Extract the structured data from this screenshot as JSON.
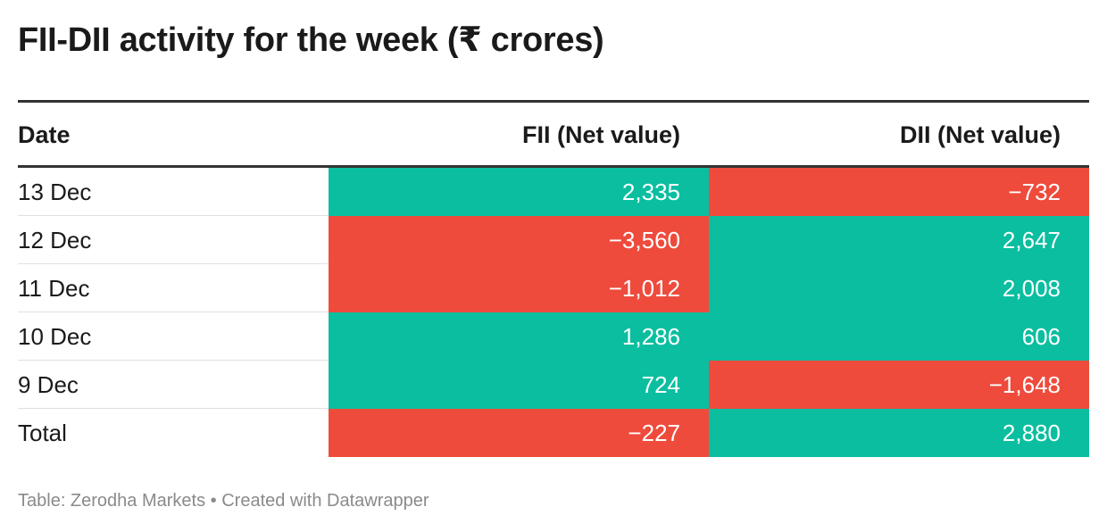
{
  "title": "FII-DII activity for the week (₹ crores)",
  "colors": {
    "positive": "#0bbea0",
    "negative": "#ee4b3c",
    "rule": "#333333"
  },
  "chart_data": {
    "type": "table",
    "title": "FII-DII activity for the week (₹ crores)",
    "columns": [
      "Date",
      "FII (Net value)",
      "DII (Net value)"
    ],
    "rows": [
      {
        "date": "13 Dec",
        "fii": 2335,
        "fii_label": "2,335",
        "dii": -732,
        "dii_label": "−732"
      },
      {
        "date": "12 Dec",
        "fii": -3560,
        "fii_label": "−3,560",
        "dii": 2647,
        "dii_label": "2,647"
      },
      {
        "date": "11 Dec",
        "fii": -1012,
        "fii_label": "−1,012",
        "dii": 2008,
        "dii_label": "2,008"
      },
      {
        "date": "10 Dec",
        "fii": 1286,
        "fii_label": "1,286",
        "dii": 606,
        "dii_label": "606"
      },
      {
        "date": "9 Dec",
        "fii": 724,
        "fii_label": "724",
        "dii": -1648,
        "dii_label": "−1,648"
      },
      {
        "date": "Total",
        "fii": -227,
        "fii_label": "−227",
        "dii": 2880,
        "dii_label": "2,880"
      }
    ]
  },
  "footer": "Table: Zerodha Markets • Created with Datawrapper"
}
